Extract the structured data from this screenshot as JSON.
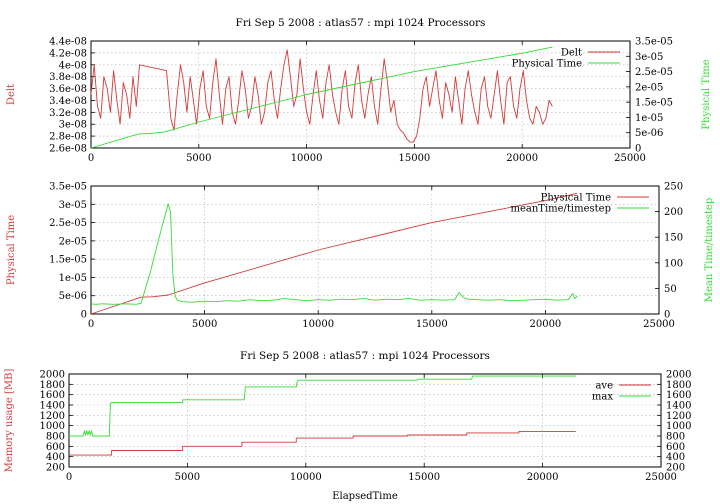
{
  "colors": {
    "red": "#d43a3a",
    "green": "#33dd33"
  },
  "chart_data": [
    {
      "type": "line",
      "title": "Fri Sep 5 2008 : atlas57 : mpi 1024 Processors",
      "xlabel": "",
      "ylabel": "Delt",
      "y2label": "Physical Time",
      "xlim": [
        0,
        25000
      ],
      "ylim": [
        2.6e-08,
        4.4e-08
      ],
      "y2lim": [
        0,
        3.5e-05
      ],
      "xticks": [
        "0",
        "5000",
        "10000",
        "15000",
        "20000",
        "25000"
      ],
      "yticks": [
        "2.6e-08",
        "2.8e-08",
        "3e-08",
        "3.2e-08",
        "3.4e-08",
        "3.6e-08",
        "3.8e-08",
        "4e-08",
        "4.2e-08",
        "4.4e-08"
      ],
      "y2ticks": [
        "0",
        "5e-06",
        "1e-05",
        "1.5e-05",
        "2e-05",
        "2.5e-05",
        "3e-05",
        "3.5e-05"
      ],
      "grid": true,
      "legend_position": "top-right",
      "series": [
        {
          "name": "Delt",
          "axis": "left",
          "color": "#d43a3a",
          "x": [
            0,
            150,
            300,
            450,
            600,
            750,
            900,
            1050,
            1200,
            1350,
            1500,
            1650,
            1800,
            1950,
            2100,
            2250,
            3500,
            3700,
            3850,
            4000,
            4150,
            4300,
            4450,
            4600,
            4750,
            4900,
            5050,
            5200,
            5350,
            5500,
            5650,
            5800,
            5950,
            6100,
            6250,
            6400,
            6550,
            6700,
            6850,
            7000,
            7150,
            7300,
            7450,
            7600,
            7750,
            7900,
            8050,
            8200,
            8350,
            8500,
            8650,
            8800,
            8950,
            9100,
            9250,
            9400,
            9550,
            9700,
            9850,
            10000,
            10150,
            10300,
            10450,
            10600,
            10750,
            10900,
            11050,
            11200,
            11350,
            11500,
            11650,
            11800,
            11950,
            12100,
            12250,
            12400,
            12550,
            12700,
            12850,
            13000,
            13150,
            13300,
            13450,
            13600,
            13750,
            13900,
            14050,
            14200,
            14350,
            14500,
            14650,
            14800,
            14950,
            15100,
            15250,
            15400,
            15550,
            15700,
            15850,
            16000,
            16150,
            16300,
            16450,
            16600,
            16750,
            16900,
            17050,
            17200,
            17350,
            17500,
            17650,
            17800,
            17950,
            18100,
            18250,
            18400,
            18550,
            18700,
            18850,
            19000,
            19150,
            19300,
            19450,
            19600,
            19750,
            19900,
            20050,
            20200,
            20350,
            20500,
            20650,
            20800,
            20950,
            21100,
            21250,
            21400
          ],
          "y": [
            3.5e-08,
            4e-08,
            3.3e-08,
            3.1e-08,
            3.8e-08,
            3.6e-08,
            3.2e-08,
            3.9e-08,
            3.4e-08,
            3e-08,
            3.7e-08,
            3.5e-08,
            3.1e-08,
            3.8e-08,
            3.3e-08,
            4e-08,
            3.9e-08,
            3.1e-08,
            2.9e-08,
            3.5e-08,
            4e-08,
            3.7e-08,
            3.2e-08,
            3.8e-08,
            3.4e-08,
            3e-08,
            3.6e-08,
            3.9e-08,
            3.3e-08,
            3.1e-08,
            3.7e-08,
            4.1e-08,
            3.5e-08,
            3e-08,
            3.6e-08,
            3.8e-08,
            3.2e-08,
            3e-08,
            3.4e-08,
            3.9e-08,
            3.6e-08,
            3.1e-08,
            3.3e-08,
            3.8e-08,
            3.5e-08,
            3e-08,
            3.2e-08,
            3.7e-08,
            3.9e-08,
            3.4e-08,
            3.1e-08,
            3.6e-08,
            4e-08,
            4.25e-08,
            3.8e-08,
            3.3e-08,
            3.5e-08,
            4.1e-08,
            3.6e-08,
            3.2e-08,
            3e-08,
            3.5e-08,
            3.9e-08,
            3.4e-08,
            3.1e-08,
            3.7e-08,
            4e-08,
            3.5e-08,
            3.2e-08,
            3e-08,
            3.6e-08,
            3.9e-08,
            3.3e-08,
            3.1e-08,
            3.7e-08,
            4e-08,
            3.4e-08,
            3.1e-08,
            3.5e-08,
            3.8e-08,
            3.3e-08,
            3e-08,
            3.6e-08,
            4.1e-08,
            3.7e-08,
            3.2e-08,
            3.4e-08,
            3e-08,
            2.9e-08,
            2.85e-08,
            2.75e-08,
            2.7e-08,
            2.7e-08,
            2.8e-08,
            3.1e-08,
            3.6e-08,
            3.8e-08,
            3.3e-08,
            3.6e-08,
            3.9e-08,
            3.4e-08,
            3.1e-08,
            3.7e-08,
            3.5e-08,
            3.2e-08,
            3.8e-08,
            3.4e-08,
            3e-08,
            3.6e-08,
            3.9e-08,
            3.5e-08,
            3.2e-08,
            3e-08,
            3.6e-08,
            3.8e-08,
            3.3e-08,
            3.1e-08,
            3.5e-08,
            3.9e-08,
            3.4e-08,
            3e-08,
            3.7e-08,
            3.8e-08,
            3.3e-08,
            3.1e-08,
            3.6e-08,
            3.9e-08,
            3.4e-08,
            3.1e-08,
            3e-08,
            3.3e-08,
            3.2e-08,
            3e-08,
            3.1e-08,
            3.4e-08,
            3.3e-08
          ]
        },
        {
          "name": "Physical Time",
          "axis": "right",
          "color": "#33dd33",
          "x": [
            0,
            2200,
            2700,
            3400,
            5000,
            10000,
            15000,
            20000,
            21400
          ],
          "y": [
            0,
            4.6e-06,
            4.7e-06,
            5.2e-06,
            8.5e-06,
            1.75e-05,
            2.5e-05,
            3.1e-05,
            3.3e-05
          ]
        }
      ]
    },
    {
      "type": "line",
      "title": "",
      "xlabel": "",
      "ylabel": "Physical Time",
      "y2label": "Mean Time/timestep",
      "xlim": [
        0,
        25000
      ],
      "ylim": [
        0,
        3.5e-05
      ],
      "y2lim": [
        0,
        250
      ],
      "xticks": [
        "0",
        "5000",
        "10000",
        "15000",
        "20000",
        "25000"
      ],
      "yticks": [
        "0",
        "5e-06",
        "1e-05",
        "1.5e-05",
        "2e-05",
        "2.5e-05",
        "3e-05",
        "3.5e-05"
      ],
      "y2ticks": [
        "0",
        "50",
        "100",
        "150",
        "200",
        "250"
      ],
      "grid": true,
      "legend_position": "top-right",
      "series": [
        {
          "name": "Physical Time",
          "axis": "left",
          "color": "#d43a3a",
          "x": [
            0,
            2200,
            2700,
            3400,
            5000,
            10000,
            15000,
            20000,
            21400
          ],
          "y": [
            0,
            4.6e-06,
            4.7e-06,
            5.2e-06,
            8.5e-06,
            1.75e-05,
            2.5e-05,
            3.1e-05,
            3.3e-05
          ]
        },
        {
          "name": "meanTime/timestep",
          "axis": "right",
          "color": "#33dd33",
          "x": [
            0,
            200,
            500,
            1000,
            1500,
            2000,
            2200,
            2600,
            3000,
            3400,
            3500,
            3600,
            3700,
            3800,
            4000,
            4500,
            5000,
            5500,
            6000,
            6500,
            7000,
            7500,
            8000,
            8500,
            9000,
            9500,
            10000,
            10500,
            11000,
            11500,
            12000,
            12500,
            13000,
            13500,
            14000,
            14500,
            15000,
            15500,
            16000,
            16200,
            16400,
            16600,
            17000,
            17500,
            18000,
            18500,
            19000,
            19500,
            20000,
            20500,
            21000,
            21200,
            21300,
            21400
          ],
          "y": [
            20,
            19,
            20,
            19,
            20,
            19,
            21,
            80,
            150,
            215,
            200,
            80,
            35,
            27,
            24,
            23,
            25,
            24,
            26,
            25,
            28,
            26,
            27,
            30,
            28,
            26,
            28,
            27,
            29,
            28,
            30,
            27,
            29,
            28,
            30,
            27,
            28,
            27,
            28,
            42,
            32,
            29,
            28,
            27,
            28,
            26,
            27,
            28,
            29,
            27,
            28,
            40,
            30,
            35
          ]
        }
      ]
    },
    {
      "type": "line",
      "title": "Fri Sep 5 2008 : atlas57 : mpi 1024 Processors",
      "xlabel": "ElapsedTime",
      "ylabel": "Memory usage [MB]",
      "y2label": "",
      "xlim": [
        0,
        25000
      ],
      "ylim": [
        200,
        2000
      ],
      "y2lim": [
        200,
        2000
      ],
      "xticks": [
        "0",
        "5000",
        "10000",
        "15000",
        "20000",
        "25000"
      ],
      "yticks": [
        "200",
        "400",
        "600",
        "800",
        "1000",
        "1200",
        "1400",
        "1600",
        "1800",
        "2000"
      ],
      "y2ticks": [
        "200",
        "400",
        "600",
        "800",
        "1000",
        "1200",
        "1400",
        "1600",
        "1800",
        "2000"
      ],
      "grid": true,
      "legend_position": "top-right",
      "series": [
        {
          "name": "ave",
          "axis": "left",
          "color": "#d43a3a",
          "x": [
            0,
            1800,
            1800,
            4800,
            4800,
            7300,
            7300,
            9600,
            9600,
            12000,
            12000,
            14300,
            14300,
            16800,
            16800,
            19000,
            19000,
            21400
          ],
          "y": [
            430,
            430,
            520,
            520,
            600,
            600,
            680,
            680,
            760,
            760,
            800,
            800,
            820,
            820,
            860,
            860,
            890,
            890
          ]
        },
        {
          "name": "max",
          "axis": "right",
          "color": "#33dd33",
          "x": [
            0,
            600,
            650,
            700,
            750,
            800,
            850,
            900,
            950,
            1000,
            1700,
            1750,
            1800,
            4800,
            4800,
            7400,
            7450,
            9600,
            9650,
            14700,
            14750,
            17000,
            17050,
            21400
          ],
          "y": [
            800,
            800,
            900,
            820,
            900,
            820,
            900,
            820,
            900,
            800,
            800,
            1430,
            1450,
            1450,
            1500,
            1500,
            1750,
            1750,
            1880,
            1880,
            1900,
            1900,
            1960,
            1960
          ]
        }
      ]
    }
  ]
}
